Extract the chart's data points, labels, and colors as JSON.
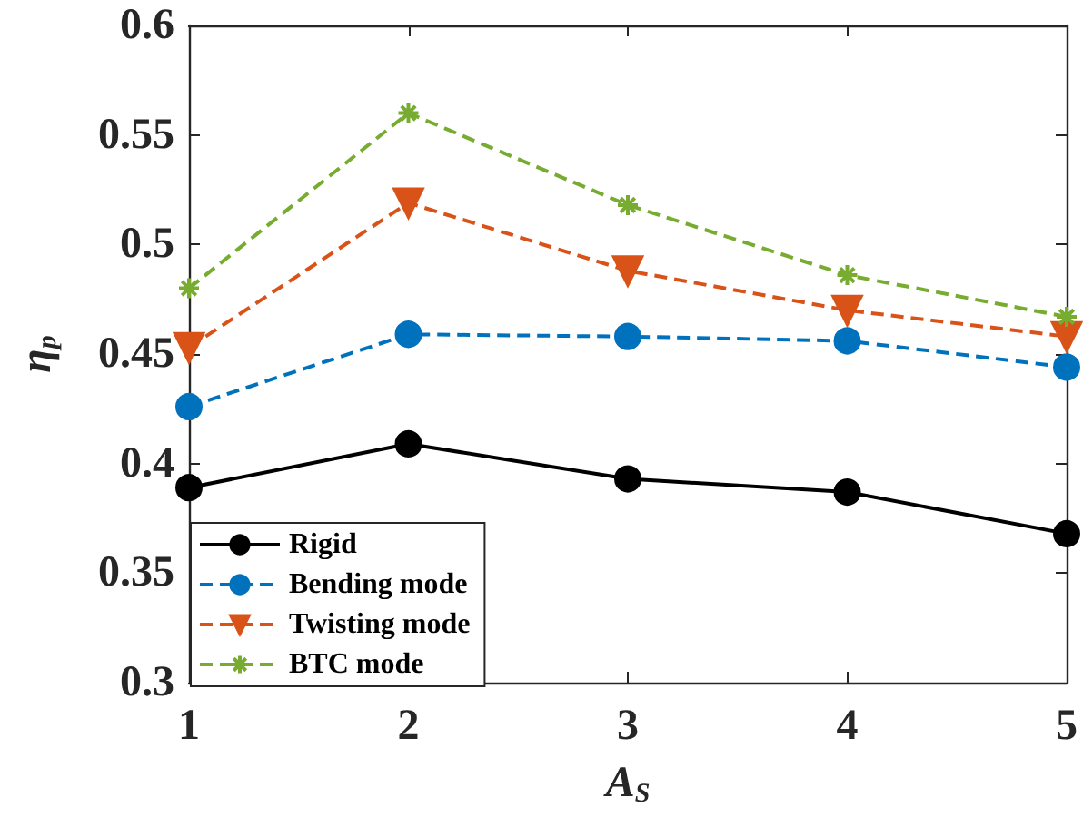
{
  "chart_data": {
    "type": "line",
    "xlabel": "A$_{S}$",
    "ylabel": "η$_{p}$",
    "x": [
      1,
      2,
      3,
      4,
      5
    ],
    "series": [
      {
        "name": "Rigid",
        "color": "#000000",
        "marker": "circle",
        "line_style": "solid",
        "values": [
          0.389,
          0.409,
          0.393,
          0.387,
          0.368
        ]
      },
      {
        "name": "Bending mode",
        "color": "#0072bd",
        "marker": "circle",
        "line_style": "dashed",
        "values": [
          0.426,
          0.459,
          0.458,
          0.456,
          0.444
        ]
      },
      {
        "name": "Twisting mode",
        "color": "#d95319",
        "marker": "triangle",
        "line_style": "dashed",
        "values": [
          0.453,
          0.519,
          0.488,
          0.47,
          0.458
        ]
      },
      {
        "name": "BTC mode",
        "color": "#77ac30",
        "marker": "cross",
        "line_style": "dashed",
        "values": [
          0.48,
          0.56,
          0.518,
          0.486,
          0.467
        ]
      }
    ],
    "xlim": [
      1,
      5
    ],
    "xticks": [
      1,
      2,
      3,
      4,
      5
    ],
    "ylim": [
      0.3,
      0.6
    ],
    "yticks": [
      0.3,
      0.35,
      0.4,
      0.45,
      0.5,
      0.55,
      0.6
    ],
    "grid": false,
    "legend": "bottom left"
  }
}
